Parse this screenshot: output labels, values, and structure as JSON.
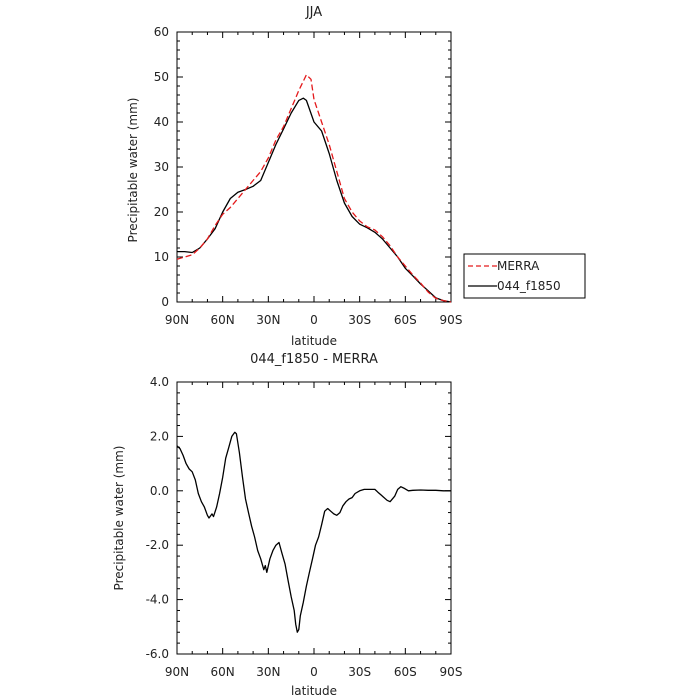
{
  "chart_data": [
    {
      "type": "line",
      "title": "JJA",
      "xlabel": "latitude",
      "ylabel": "Precipitable water (mm)",
      "xlim": [
        90,
        -90
      ],
      "ylim": [
        0,
        60
      ],
      "xticks": [
        {
          "value": 90,
          "label": "90N"
        },
        {
          "value": 60,
          "label": "60N"
        },
        {
          "value": 30,
          "label": "30N"
        },
        {
          "value": 0,
          "label": "0"
        },
        {
          "value": -30,
          "label": "30S"
        },
        {
          "value": -60,
          "label": "60S"
        },
        {
          "value": -90,
          "label": "90S"
        }
      ],
      "yticks": [
        {
          "value": 0,
          "label": "0"
        },
        {
          "value": 10,
          "label": "10"
        },
        {
          "value": 20,
          "label": "20"
        },
        {
          "value": 30,
          "label": "30"
        },
        {
          "value": 40,
          "label": "40"
        },
        {
          "value": 50,
          "label": "50"
        },
        {
          "value": 60,
          "label": "60"
        }
      ],
      "legend": {
        "placement": "right"
      },
      "series": [
        {
          "name": "MERRA",
          "color": "#e41a1c",
          "dash": "dashed",
          "points": [
            [
              90,
              9.5
            ],
            [
              85,
              10
            ],
            [
              80,
              10.5
            ],
            [
              75,
              12
            ],
            [
              70,
              14
            ],
            [
              65,
              17
            ],
            [
              60,
              19.5
            ],
            [
              55,
              21
            ],
            [
              50,
              23
            ],
            [
              45,
              25
            ],
            [
              40,
              27
            ],
            [
              35,
              29
            ],
            [
              30,
              32
            ],
            [
              25,
              36
            ],
            [
              20,
              39
            ],
            [
              15,
              43
            ],
            [
              10,
              47
            ],
            [
              5,
              50.5
            ],
            [
              2,
              49.5
            ],
            [
              0,
              45
            ],
            [
              -5,
              40
            ],
            [
              -10,
              35
            ],
            [
              -15,
              29
            ],
            [
              -20,
              23
            ],
            [
              -25,
              20
            ],
            [
              -30,
              18
            ],
            [
              -35,
              16.7
            ],
            [
              -40,
              16
            ],
            [
              -45,
              14.5
            ],
            [
              -50,
              12.5
            ],
            [
              -55,
              10
            ],
            [
              -60,
              8
            ],
            [
              -65,
              6
            ],
            [
              -70,
              4.2
            ],
            [
              -75,
              2.2
            ],
            [
              -80,
              0.8
            ],
            [
              -85,
              0.3
            ],
            [
              -90,
              0
            ]
          ]
        },
        {
          "name": "044_f1850",
          "color": "#000000",
          "dash": "solid",
          "points": [
            [
              90,
              11.2
            ],
            [
              85,
              11.2
            ],
            [
              80,
              11
            ],
            [
              75,
              12
            ],
            [
              70,
              14
            ],
            [
              65,
              16.3
            ],
            [
              60,
              20
            ],
            [
              55,
              23
            ],
            [
              50,
              24.4
            ],
            [
              45,
              25
            ],
            [
              40,
              25.7
            ],
            [
              35,
              27
            ],
            [
              30,
              31
            ],
            [
              25,
              35
            ],
            [
              20,
              38.5
            ],
            [
              15,
              42
            ],
            [
              10,
              44.8
            ],
            [
              7,
              45.3
            ],
            [
              5,
              44.8
            ],
            [
              0,
              40
            ],
            [
              -5,
              38
            ],
            [
              -10,
              33
            ],
            [
              -15,
              27
            ],
            [
              -20,
              22
            ],
            [
              -25,
              19
            ],
            [
              -30,
              17.3
            ],
            [
              -35,
              16.5
            ],
            [
              -40,
              15.5
            ],
            [
              -45,
              14
            ],
            [
              -50,
              12
            ],
            [
              -55,
              10
            ],
            [
              -60,
              7.5
            ],
            [
              -65,
              5.8
            ],
            [
              -70,
              4
            ],
            [
              -75,
              2.5
            ],
            [
              -80,
              0.9
            ],
            [
              -85,
              0.3
            ],
            [
              -90,
              0
            ]
          ]
        }
      ]
    },
    {
      "type": "line",
      "title": "044_f1850 - MERRA",
      "xlabel": "latitude",
      "ylabel": "Precipitable water (mm)",
      "xlim": [
        90,
        -90
      ],
      "ylim": [
        -6,
        4
      ],
      "xticks": [
        {
          "value": 90,
          "label": "90N"
        },
        {
          "value": 60,
          "label": "60N"
        },
        {
          "value": 30,
          "label": "30N"
        },
        {
          "value": 0,
          "label": "0"
        },
        {
          "value": -30,
          "label": "30S"
        },
        {
          "value": -60,
          "label": "60S"
        },
        {
          "value": -90,
          "label": "90S"
        }
      ],
      "yticks": [
        {
          "value": 4,
          "label": "4.0"
        },
        {
          "value": 2,
          "label": "2.0"
        },
        {
          "value": 0,
          "label": "0.0"
        },
        {
          "value": -2,
          "label": "-2.0"
        },
        {
          "value": -4,
          "label": "-4.0"
        },
        {
          "value": -6,
          "label": "-6.0"
        }
      ],
      "series": [
        {
          "color": "#000000",
          "dash": "solid",
          "points": [
            [
              90,
              1.65
            ],
            [
              88,
              1.55
            ],
            [
              86,
              1.3
            ],
            [
              84,
              1.0
            ],
            [
              82,
              0.8
            ],
            [
              80,
              0.7
            ],
            [
              78,
              0.4
            ],
            [
              76,
              -0.1
            ],
            [
              74,
              -0.4
            ],
            [
              72,
              -0.6
            ],
            [
              70,
              -0.9
            ],
            [
              69,
              -1.0
            ],
            [
              67,
              -0.85
            ],
            [
              66,
              -0.95
            ],
            [
              64,
              -0.6
            ],
            [
              62,
              -0.1
            ],
            [
              60,
              0.5
            ],
            [
              58,
              1.2
            ],
            [
              56,
              1.6
            ],
            [
              54,
              2.0
            ],
            [
              52,
              2.15
            ],
            [
              51,
              2.1
            ],
            [
              49,
              1.4
            ],
            [
              47,
              0.5
            ],
            [
              45,
              -0.3
            ],
            [
              43,
              -0.8
            ],
            [
              41,
              -1.3
            ],
            [
              39,
              -1.7
            ],
            [
              37,
              -2.2
            ],
            [
              35,
              -2.5
            ],
            [
              33,
              -2.9
            ],
            [
              32,
              -2.75
            ],
            [
              31,
              -3.0
            ],
            [
              29,
              -2.5
            ],
            [
              27,
              -2.2
            ],
            [
              25,
              -2.0
            ],
            [
              23,
              -1.9
            ],
            [
              21,
              -2.3
            ],
            [
              19,
              -2.7
            ],
            [
              17,
              -3.3
            ],
            [
              15,
              -3.9
            ],
            [
              13,
              -4.4
            ],
            [
              12,
              -4.9
            ],
            [
              11,
              -5.2
            ],
            [
              10,
              -5.1
            ],
            [
              9,
              -4.6
            ],
            [
              7,
              -4.1
            ],
            [
              5,
              -3.5
            ],
            [
              3,
              -3.0
            ],
            [
              1,
              -2.5
            ],
            [
              -1,
              -2.0
            ],
            [
              -3,
              -1.7
            ],
            [
              -5,
              -1.25
            ],
            [
              -7,
              -0.75
            ],
            [
              -9,
              -0.65
            ],
            [
              -11,
              -0.75
            ],
            [
              -13,
              -0.85
            ],
            [
              -15,
              -0.9
            ],
            [
              -17,
              -0.8
            ],
            [
              -19,
              -0.55
            ],
            [
              -21,
              -0.4
            ],
            [
              -23,
              -0.3
            ],
            [
              -25,
              -0.25
            ],
            [
              -27,
              -0.1
            ],
            [
              -30,
              0.0
            ],
            [
              -33,
              0.05
            ],
            [
              -36,
              0.05
            ],
            [
              -40,
              0.05
            ],
            [
              -42,
              -0.05
            ],
            [
              -45,
              -0.2
            ],
            [
              -48,
              -0.35
            ],
            [
              -50,
              -0.4
            ],
            [
              -53,
              -0.2
            ],
            [
              -55,
              0.05
            ],
            [
              -57,
              0.15
            ],
            [
              -59,
              0.1
            ],
            [
              -62,
              0.0
            ],
            [
              -65,
              0.02
            ],
            [
              -70,
              0.03
            ],
            [
              -75,
              0.02
            ],
            [
              -80,
              0.02
            ],
            [
              -85,
              0.0
            ],
            [
              -90,
              0.0
            ]
          ]
        }
      ]
    }
  ]
}
